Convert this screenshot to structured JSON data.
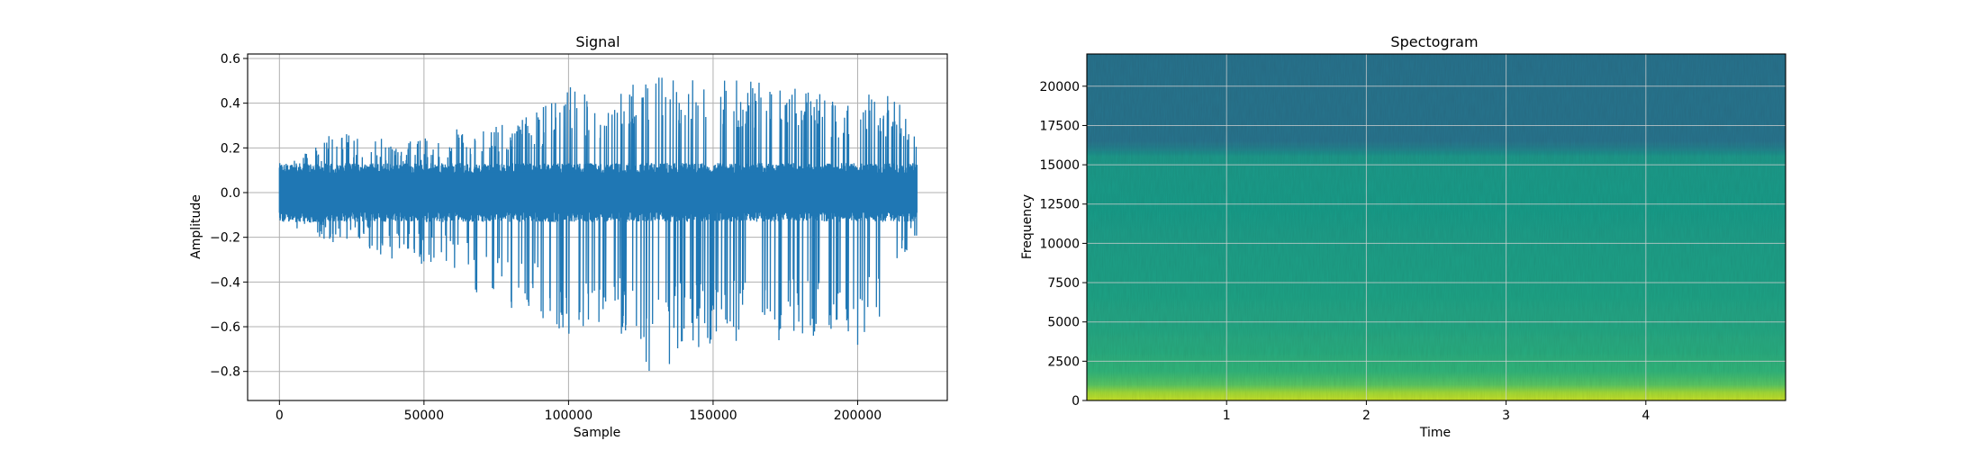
{
  "chart_data": [
    {
      "type": "line",
      "title": "Signal",
      "xlabel": "Sample",
      "ylabel": "Amplitude",
      "xlim": [
        -11000,
        231000
      ],
      "ylim": [
        -0.93,
        0.62
      ],
      "grid": true,
      "x_ticks": [
        0,
        50000,
        100000,
        150000,
        200000
      ],
      "x_tick_labels": [
        "0",
        "50000",
        "100000",
        "150000",
        "200000"
      ],
      "y_ticks": [
        0.6,
        0.4,
        0.2,
        0.0,
        -0.2,
        -0.4,
        -0.6,
        -0.8
      ],
      "y_tick_labels": [
        "0.6",
        "0.4",
        "0.2",
        "0.0",
        "−0.2",
        "−0.4",
        "−0.6",
        "−0.8"
      ],
      "series": [
        {
          "color": "#1f77b4",
          "sample_range": [
            0,
            220500
          ],
          "envelope": [
            {
              "x": 0,
              "max": 0.13,
              "min": -0.12
            },
            {
              "x": 10000,
              "max": 0.2,
              "min": -0.2
            },
            {
              "x": 20000,
              "max": 0.28,
              "min": -0.23
            },
            {
              "x": 30000,
              "max": 0.25,
              "min": -0.27
            },
            {
              "x": 40000,
              "max": 0.24,
              "min": -0.31
            },
            {
              "x": 50000,
              "max": 0.26,
              "min": -0.33
            },
            {
              "x": 60000,
              "max": 0.29,
              "min": -0.35
            },
            {
              "x": 70000,
              "max": 0.29,
              "min": -0.47
            },
            {
              "x": 80000,
              "max": 0.33,
              "min": -0.52
            },
            {
              "x": 90000,
              "max": 0.37,
              "min": -0.58
            },
            {
              "x": 100000,
              "max": 0.48,
              "min": -0.66
            },
            {
              "x": 110000,
              "max": 0.44,
              "min": -0.58
            },
            {
              "x": 120000,
              "max": 0.48,
              "min": -0.66
            },
            {
              "x": 130000,
              "max": 0.52,
              "min": -0.86
            },
            {
              "x": 140000,
              "max": 0.54,
              "min": -0.68
            },
            {
              "x": 150000,
              "max": 0.55,
              "min": -0.72
            },
            {
              "x": 160000,
              "max": 0.52,
              "min": -0.66
            },
            {
              "x": 170000,
              "max": 0.49,
              "min": -0.7
            },
            {
              "x": 180000,
              "max": 0.47,
              "min": -0.66
            },
            {
              "x": 190000,
              "max": 0.44,
              "min": -0.62
            },
            {
              "x": 200000,
              "max": 0.45,
              "min": -0.69
            },
            {
              "x": 210000,
              "max": 0.44,
              "min": -0.53
            },
            {
              "x": 220500,
              "max": 0.34,
              "min": -0.2
            }
          ],
          "body_amplitude": 0.12
        }
      ]
    },
    {
      "type": "heatmap",
      "title": "Spectogram",
      "xlabel": "Time",
      "ylabel": "Frequency",
      "xlim": [
        0,
        5
      ],
      "ylim": [
        0,
        22050
      ],
      "grid": true,
      "colormap": "viridis",
      "x_ticks": [
        1,
        2,
        3,
        4
      ],
      "x_tick_labels": [
        "1",
        "2",
        "3",
        "4"
      ],
      "y_ticks": [
        0,
        2500,
        5000,
        7500,
        10000,
        12500,
        15000,
        17500,
        20000
      ],
      "y_tick_labels": [
        "0",
        "2500",
        "5000",
        "7500",
        "10000",
        "12500",
        "15000",
        "17500",
        "20000"
      ],
      "frequency_profile": [
        {
          "freq": 0,
          "level": 0.92
        },
        {
          "freq": 500,
          "level": 0.86
        },
        {
          "freq": 1000,
          "level": 0.74
        },
        {
          "freq": 1800,
          "level": 0.66
        },
        {
          "freq": 3000,
          "level": 0.62
        },
        {
          "freq": 5000,
          "level": 0.59
        },
        {
          "freq": 8000,
          "level": 0.57
        },
        {
          "freq": 12000,
          "level": 0.55
        },
        {
          "freq": 15500,
          "level": 0.54
        },
        {
          "freq": 16000,
          "level": 0.45
        },
        {
          "freq": 16500,
          "level": 0.39
        },
        {
          "freq": 22050,
          "level": 0.38
        }
      ]
    }
  ]
}
